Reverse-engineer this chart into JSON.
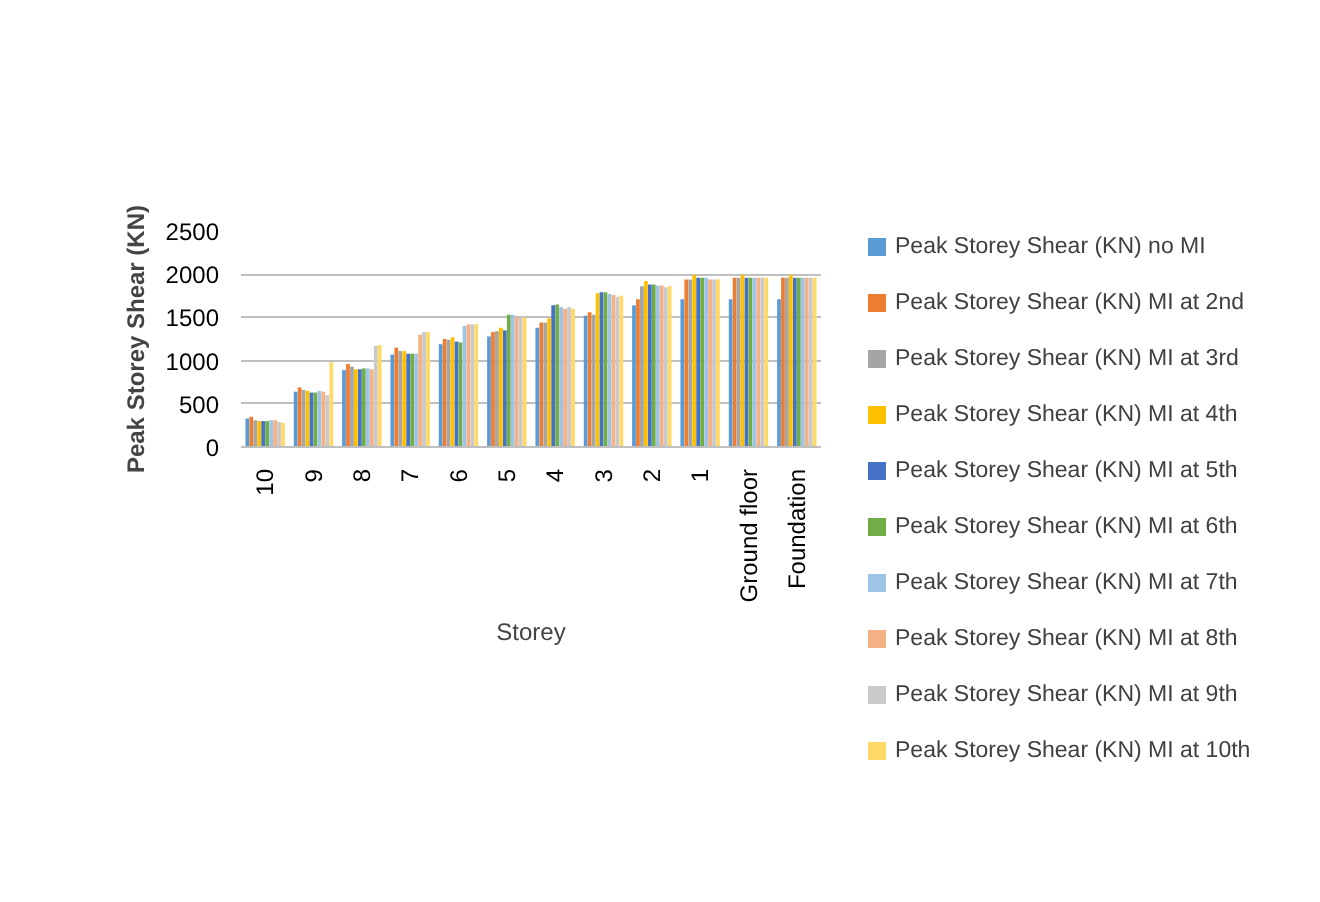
{
  "chart_data": {
    "type": "bar",
    "xlabel": "Storey",
    "ylabel": "Peak Storey Shear (KN)",
    "categories": [
      "10",
      "9",
      "8",
      "7",
      "6",
      "5",
      "4",
      "3",
      "2",
      "1",
      "Ground floor",
      "Foundation"
    ],
    "ylim": [
      0,
      2500
    ],
    "yticks": [
      0,
      500,
      1000,
      1500,
      2000,
      2500
    ],
    "grid": "y",
    "legend": "right",
    "series": [
      {
        "name": "Peak Storey Shear (KN) no MI",
        "color": "#5b9bd5",
        "values": [
          330,
          640,
          890,
          1070,
          1190,
          1280,
          1380,
          1520,
          1640,
          1710,
          1710,
          1710
        ]
      },
      {
        "name": "Peak Storey Shear (KN) MI at 2nd",
        "color": "#ed7d31",
        "values": [
          350,
          690,
          960,
          1150,
          1250,
          1330,
          1440,
          1560,
          1710,
          1940,
          1960,
          1960
        ]
      },
      {
        "name": "Peak Storey Shear (KN) MI at 3rd",
        "color": "#a5a5a5",
        "values": [
          310,
          660,
          930,
          1110,
          1240,
          1340,
          1440,
          1530,
          1860,
          1940,
          1960,
          1960
        ]
      },
      {
        "name": "Peak Storey Shear (KN) MI at 4th",
        "color": "#ffc000",
        "values": [
          300,
          650,
          900,
          1110,
          1270,
          1380,
          1490,
          1780,
          1920,
          1990,
          1990,
          1990
        ]
      },
      {
        "name": "Peak Storey Shear (KN) MI at 5th",
        "color": "#4472c4",
        "values": [
          300,
          630,
          900,
          1080,
          1220,
          1350,
          1640,
          1790,
          1880,
          1960,
          1960,
          1960
        ]
      },
      {
        "name": "Peak Storey Shear (KN) MI at 6th",
        "color": "#70ad47",
        "values": [
          300,
          630,
          910,
          1080,
          1210,
          1530,
          1650,
          1790,
          1880,
          1960,
          1960,
          1960
        ]
      },
      {
        "name": "Peak Storey Shear (KN) MI at 7th",
        "color": "#9dc3e6",
        "values": [
          310,
          650,
          910,
          1080,
          1400,
          1530,
          1620,
          1770,
          1870,
          1960,
          1960,
          1960
        ]
      },
      {
        "name": "Peak Storey Shear (KN) MI at 8th",
        "color": "#f4b183",
        "values": [
          310,
          640,
          900,
          1300,
          1420,
          1510,
          1600,
          1760,
          1870,
          1940,
          1960,
          1960
        ]
      },
      {
        "name": "Peak Storey Shear (KN) MI at 9th",
        "color": "#c9c9c9",
        "values": [
          290,
          600,
          1170,
          1330,
          1420,
          1500,
          1620,
          1740,
          1850,
          1940,
          1960,
          1960
        ]
      },
      {
        "name": "Peak Storey Shear (KN) MI at 10th",
        "color": "#ffd966",
        "values": [
          280,
          980,
          1180,
          1330,
          1420,
          1500,
          1600,
          1750,
          1860,
          1940,
          1960,
          1960
        ]
      }
    ]
  }
}
